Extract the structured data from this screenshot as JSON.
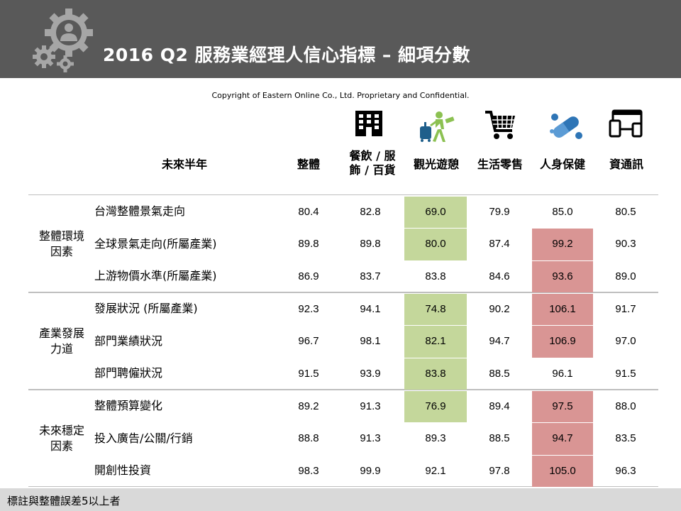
{
  "header": {
    "title": "2016 Q2 服務業經理人信心指標 – 細項分數"
  },
  "copyright": "Copyright  of Eastern Online   Co., Ltd. Proprietary and Confidential.",
  "table": {
    "corner_label": "未來半年",
    "columns": [
      {
        "label": "整體",
        "icon": ""
      },
      {
        "label_line1": "餐飲 / 服",
        "label_line2": "飾 / 百貨",
        "icon": "building-icon"
      },
      {
        "label": "觀光遊憩",
        "icon": "traveler-icon"
      },
      {
        "label": "生活零售",
        "icon": "shopping-cart-icon"
      },
      {
        "label": "人身保健",
        "icon": "pill-icon"
      },
      {
        "label": "資通訊",
        "icon": "devices-icon"
      }
    ],
    "groups": [
      {
        "label_line1": "整體環境",
        "label_line2": "因素",
        "rows": [
          {
            "label": "台灣整體景氣走向",
            "values": [
              "80.4",
              "82.8",
              "69.0",
              "79.9",
              "85.0",
              "80.5"
            ],
            "highlight": [
              "",
              "",
              "green",
              "",
              "",
              ""
            ]
          },
          {
            "label": "全球景氣走向(所屬產業)",
            "values": [
              "89.8",
              "89.8",
              "80.0",
              "87.4",
              "99.2",
              "90.3"
            ],
            "highlight": [
              "",
              "",
              "green",
              "",
              "red",
              ""
            ]
          },
          {
            "label": "上游物價水準(所屬產業)",
            "values": [
              "86.9",
              "83.7",
              "83.8",
              "84.6",
              "93.6",
              "89.0"
            ],
            "highlight": [
              "",
              "",
              "",
              "",
              "red",
              ""
            ]
          }
        ]
      },
      {
        "label_line1": "產業發展",
        "label_line2": "力道",
        "rows": [
          {
            "label": "發展狀況 (所屬產業)",
            "values": [
              "92.3",
              "94.1",
              "74.8",
              "90.2",
              "106.1",
              "91.7"
            ],
            "highlight": [
              "",
              "",
              "green",
              "",
              "red",
              ""
            ]
          },
          {
            "label": "部門業績狀況",
            "values": [
              "96.7",
              "98.1",
              "82.1",
              "94.7",
              "106.9",
              "97.0"
            ],
            "highlight": [
              "",
              "",
              "green",
              "",
              "red",
              ""
            ]
          },
          {
            "label": "部門聘僱狀況",
            "values": [
              "91.5",
              "93.9",
              "83.8",
              "88.5",
              "96.1",
              "91.5"
            ],
            "highlight": [
              "",
              "",
              "green",
              "",
              "",
              ""
            ]
          }
        ]
      },
      {
        "label_line1": "未來穩定",
        "label_line2": "因素",
        "rows": [
          {
            "label": "整體預算變化",
            "values": [
              "89.2",
              "91.3",
              "76.9",
              "89.4",
              "97.5",
              "88.0"
            ],
            "highlight": [
              "",
              "",
              "green",
              "",
              "red",
              ""
            ]
          },
          {
            "label": "投入廣告/公關/行銷",
            "values": [
              "88.8",
              "91.3",
              "89.3",
              "88.5",
              "94.7",
              "83.5"
            ],
            "highlight": [
              "",
              "",
              "",
              "",
              "red",
              ""
            ]
          },
          {
            "label": "開創性投資",
            "values": [
              "98.3",
              "99.9",
              "92.1",
              "97.8",
              "105.0",
              "96.3"
            ],
            "highlight": [
              "",
              "",
              "",
              "",
              "red",
              ""
            ]
          }
        ]
      }
    ],
    "colors": {
      "green": "#c4d79b",
      "red": "#d99594",
      "header_bg": "#595959",
      "footer_bg": "#d9d9d9"
    }
  },
  "footer": {
    "note": "標註與整體誤差5以上者"
  }
}
